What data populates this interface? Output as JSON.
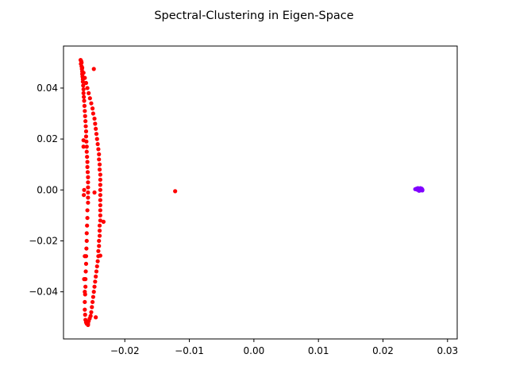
{
  "chart_data": {
    "type": "scatter",
    "title": "Spectral-Clustering in Eigen-Space",
    "xlabel": "",
    "ylabel": "",
    "xlim": [
      -0.0295,
      0.0315
    ],
    "ylim": [
      -0.0585,
      0.0565
    ],
    "x_ticks": [
      -0.02,
      -0.01,
      0.0,
      0.01,
      0.02,
      0.03
    ],
    "x_tick_labels": [
      "−0.02",
      "−0.01",
      "0.00",
      "0.01",
      "0.02",
      "0.03"
    ],
    "y_ticks": [
      -0.04,
      -0.02,
      0.0,
      0.02,
      0.04
    ],
    "y_tick_labels": [
      "−0.04",
      "−0.02",
      "0.00",
      "0.02",
      "0.04"
    ],
    "grid": false,
    "legend": "none",
    "series": [
      {
        "color": "#ff0000",
        "points": [
          [
            -0.02675,
            0.0505
          ],
          [
            -0.0268,
            0.0495
          ],
          [
            -0.0267,
            0.0485
          ],
          [
            -0.02665,
            0.0475
          ],
          [
            -0.0266,
            0.0465
          ],
          [
            -0.0266,
            0.0455
          ],
          [
            -0.02655,
            0.0445
          ],
          [
            -0.0265,
            0.0435
          ],
          [
            -0.0265,
            0.0425
          ],
          [
            -0.02645,
            0.041
          ],
          [
            -0.0264,
            0.0395
          ],
          [
            -0.0264,
            0.038
          ],
          [
            -0.02635,
            0.0365
          ],
          [
            -0.0263,
            0.035
          ],
          [
            -0.02625,
            0.033
          ],
          [
            -0.0262,
            0.031
          ],
          [
            -0.02615,
            0.029
          ],
          [
            -0.0261,
            0.027
          ],
          [
            -0.02605,
            0.025
          ],
          [
            -0.026,
            0.023
          ],
          [
            -0.026,
            0.021
          ],
          [
            -0.02595,
            0.019
          ],
          [
            -0.0259,
            0.017
          ],
          [
            -0.0259,
            0.015
          ],
          [
            -0.02585,
            0.013
          ],
          [
            -0.0258,
            0.011
          ],
          [
            -0.0258,
            0.009
          ],
          [
            -0.02575,
            0.007
          ],
          [
            -0.0257,
            0.005
          ],
          [
            -0.0257,
            0.003
          ],
          [
            -0.0257,
            0.001
          ],
          [
            -0.0257,
            -0.001
          ],
          [
            -0.0257,
            -0.003
          ],
          [
            -0.0257,
            -0.005
          ],
          [
            -0.0258,
            -0.008
          ],
          [
            -0.0258,
            -0.011
          ],
          [
            -0.02585,
            -0.014
          ],
          [
            -0.0259,
            -0.017
          ],
          [
            -0.0259,
            -0.02
          ],
          [
            -0.02595,
            -0.023
          ],
          [
            -0.026,
            -0.026
          ],
          [
            -0.026,
            -0.029
          ],
          [
            -0.02605,
            -0.032
          ],
          [
            -0.0261,
            -0.035
          ],
          [
            -0.0261,
            -0.038
          ],
          [
            -0.02615,
            -0.041
          ],
          [
            -0.0262,
            -0.044
          ],
          [
            -0.0262,
            -0.047
          ],
          [
            -0.02615,
            -0.049
          ],
          [
            -0.0261,
            -0.051
          ],
          [
            -0.026,
            -0.052
          ],
          [
            -0.0259,
            -0.0525
          ],
          [
            -0.0257,
            -0.0525
          ],
          [
            -0.0256,
            -0.0515
          ],
          [
            -0.02545,
            -0.0505
          ],
          [
            -0.0253,
            -0.0495
          ],
          [
            -0.0252,
            -0.048
          ],
          [
            -0.0251,
            -0.046
          ],
          [
            -0.025,
            -0.044
          ],
          [
            -0.0249,
            -0.042
          ],
          [
            -0.0248,
            -0.04
          ],
          [
            -0.0247,
            -0.038
          ],
          [
            -0.0246,
            -0.036
          ],
          [
            -0.0245,
            -0.034
          ],
          [
            -0.0244,
            -0.032
          ],
          [
            -0.0243,
            -0.03
          ],
          [
            -0.0242,
            -0.028
          ],
          [
            -0.0241,
            -0.026
          ],
          [
            -0.0241,
            -0.024
          ],
          [
            -0.024,
            -0.022
          ],
          [
            -0.024,
            -0.02
          ],
          [
            -0.0239,
            -0.018
          ],
          [
            -0.0239,
            -0.016
          ],
          [
            -0.0239,
            -0.014
          ],
          [
            -0.0238,
            -0.012
          ],
          [
            -0.0238,
            -0.01
          ],
          [
            -0.0238,
            -0.008
          ],
          [
            -0.0238,
            -0.006
          ],
          [
            -0.0238,
            -0.004
          ],
          [
            -0.0238,
            -0.002
          ],
          [
            -0.0238,
            0.0
          ],
          [
            -0.0238,
            0.002
          ],
          [
            -0.0238,
            0.004
          ],
          [
            -0.0238,
            0.006
          ],
          [
            -0.0239,
            0.008
          ],
          [
            -0.0239,
            0.01
          ],
          [
            -0.024,
            0.012
          ],
          [
            -0.024,
            0.014
          ],
          [
            -0.0241,
            0.016
          ],
          [
            -0.0242,
            0.018
          ],
          [
            -0.0243,
            0.02
          ],
          [
            -0.0244,
            0.022
          ],
          [
            -0.0245,
            0.024
          ],
          [
            -0.0246,
            0.026
          ],
          [
            -0.0247,
            0.028
          ],
          [
            -0.0249,
            0.03
          ],
          [
            -0.025,
            0.032
          ],
          [
            -0.0252,
            0.034
          ],
          [
            -0.0254,
            0.036
          ],
          [
            -0.0256,
            0.038
          ],
          [
            -0.0258,
            0.04
          ],
          [
            -0.026,
            0.042
          ],
          [
            -0.0262,
            0.044
          ],
          [
            -0.0264,
            0.046
          ],
          [
            -0.0266,
            0.048
          ],
          [
            -0.0267,
            0.05
          ],
          [
            -0.02685,
            0.051
          ],
          [
            -0.0264,
            0.0195
          ],
          [
            -0.0264,
            0.017
          ],
          [
            -0.0263,
            0.0
          ],
          [
            -0.02635,
            -0.002
          ],
          [
            -0.0262,
            -0.026
          ],
          [
            -0.0263,
            -0.035
          ],
          [
            -0.0262,
            -0.04
          ],
          [
            -0.0248,
            0.0475
          ],
          [
            -0.0247,
            -0.001
          ],
          [
            -0.0233,
            -0.0125
          ],
          [
            -0.0238,
            -0.0258
          ],
          [
            -0.0245,
            -0.05
          ],
          [
            -0.0257,
            -0.053
          ],
          [
            -0.0122,
            -0.0005
          ]
        ]
      },
      {
        "color": "#8000ff",
        "points": [
          [
            0.025,
            0.0003
          ],
          [
            0.0252,
            0.0005
          ],
          [
            0.0253,
            0.0001
          ],
          [
            0.0254,
            0.0004
          ],
          [
            0.0255,
            -0.0001
          ],
          [
            0.0255,
            0.0006
          ],
          [
            0.0256,
            0.0002
          ],
          [
            0.0257,
            0.0005
          ],
          [
            0.0257,
            -0.0002
          ],
          [
            0.0258,
            0.0003
          ],
          [
            0.0258,
            0.0
          ],
          [
            0.0259,
            0.0004
          ],
          [
            0.0259,
            -0.0001
          ],
          [
            0.026,
            0.0002
          ],
          [
            0.026,
            0.0005
          ],
          [
            0.0261,
            0.0001
          ],
          [
            0.0256,
            -0.0003
          ],
          [
            0.0254,
            0.0007
          ],
          [
            0.0258,
            0.0007
          ],
          [
            0.0261,
            -0.0002
          ]
        ]
      }
    ]
  }
}
